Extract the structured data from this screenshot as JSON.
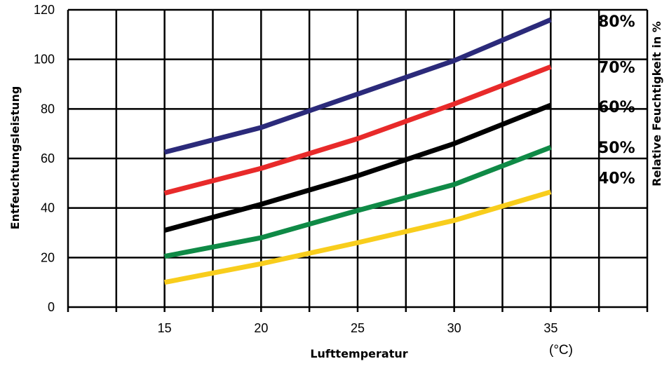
{
  "chart_data": {
    "type": "line",
    "xlabel": "Lufttemperatur",
    "x_unit": "(°C)",
    "ylabel": "Entfeuchtungsleistung",
    "ylabel_right": "Relative Feuchtigkeit in %",
    "xlim": [
      10,
      40
    ],
    "ylim": [
      0,
      120
    ],
    "x_ticks": [
      15,
      20,
      25,
      30,
      35
    ],
    "y_ticks": [
      0,
      20,
      40,
      60,
      80,
      100,
      120
    ],
    "grid": true,
    "x": [
      15,
      20,
      25,
      30,
      35
    ],
    "series": [
      {
        "name": "80%",
        "color": "#2b2a7a",
        "values": [
          62.5,
          72.5,
          86,
          99.5,
          116
        ]
      },
      {
        "name": "70%",
        "color": "#e82a2a",
        "values": [
          46,
          56,
          68,
          82,
          97
        ]
      },
      {
        "name": "60%",
        "color": "#000000",
        "values": [
          31,
          41.5,
          53,
          66,
          81.5
        ]
      },
      {
        "name": "50%",
        "color": "#0f8a46",
        "values": [
          20.5,
          28,
          39,
          49.5,
          64.5
        ]
      },
      {
        "name": "40%",
        "color": "#f8cd1c",
        "values": [
          10,
          17.5,
          26,
          35,
          46.5
        ]
      }
    ]
  }
}
